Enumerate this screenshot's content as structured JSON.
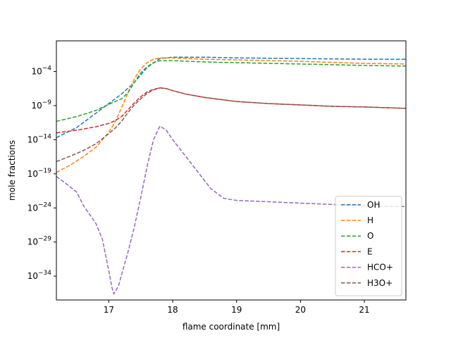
{
  "chart_data": {
    "type": "line",
    "title": "",
    "xlabel": "flame coordinate [mm]",
    "ylabel": "mole fractions",
    "xscale": "linear",
    "yscale": "log",
    "xlim": [
      16.18,
      21.65
    ],
    "ylim_exponent": [
      -37.5,
      0.5
    ],
    "x_ticks": [
      17,
      18,
      19,
      20,
      21
    ],
    "y_ticks_exponent": [
      -34,
      -29,
      -24,
      -19,
      -14,
      -9,
      -4
    ],
    "grid": false,
    "legend_position": "lower right",
    "series": [
      {
        "name": "OH",
        "color": "#1f77b4",
        "style": "dashed",
        "points": [
          [
            16.18,
            -13.7
          ],
          [
            16.5,
            -12.2
          ],
          [
            16.8,
            -10.1
          ],
          [
            17.0,
            -8.7
          ],
          [
            17.2,
            -7.3
          ],
          [
            17.4,
            -5.6
          ],
          [
            17.6,
            -3.4
          ],
          [
            17.8,
            -2.1
          ],
          [
            18.0,
            -1.9
          ],
          [
            18.5,
            -1.9
          ],
          [
            19.0,
            -2.0
          ],
          [
            20.0,
            -2.1
          ],
          [
            21.0,
            -2.2
          ],
          [
            21.65,
            -2.2
          ]
        ]
      },
      {
        "name": "H",
        "color": "#ff7f0e",
        "style": "dashed",
        "points": [
          [
            16.18,
            -18.8
          ],
          [
            16.4,
            -17.7
          ],
          [
            16.6,
            -16.5
          ],
          [
            16.8,
            -15.1
          ],
          [
            17.0,
            -12.9
          ],
          [
            17.1,
            -11.4
          ],
          [
            17.2,
            -9.3
          ],
          [
            17.3,
            -7.1
          ],
          [
            17.4,
            -5.1
          ],
          [
            17.5,
            -3.6
          ],
          [
            17.6,
            -2.7
          ],
          [
            17.7,
            -2.2
          ],
          [
            17.8,
            -2.0
          ],
          [
            18.0,
            -2.0
          ],
          [
            18.5,
            -2.2
          ],
          [
            19.0,
            -2.3
          ],
          [
            20.0,
            -2.5
          ],
          [
            21.0,
            -2.8
          ],
          [
            21.65,
            -2.9
          ]
        ]
      },
      {
        "name": "O",
        "color": "#2ca02c",
        "style": "dashed",
        "points": [
          [
            16.18,
            -11.3
          ],
          [
            16.5,
            -10.6
          ],
          [
            16.8,
            -9.7
          ],
          [
            17.0,
            -8.8
          ],
          [
            17.2,
            -8.0
          ],
          [
            17.3,
            -7.1
          ],
          [
            17.4,
            -5.6
          ],
          [
            17.5,
            -4.2
          ],
          [
            17.6,
            -3.3
          ],
          [
            17.7,
            -2.7
          ],
          [
            17.8,
            -2.4
          ],
          [
            18.0,
            -2.4
          ],
          [
            18.5,
            -2.6
          ],
          [
            19.0,
            -2.7
          ],
          [
            20.0,
            -2.9
          ],
          [
            21.0,
            -3.1
          ],
          [
            21.65,
            -3.2
          ]
        ]
      },
      {
        "name": "E",
        "color": "#d62728",
        "style": "dashed",
        "points": [
          [
            16.18,
            -13.0
          ],
          [
            16.5,
            -12.6
          ],
          [
            16.8,
            -12.1
          ],
          [
            17.0,
            -11.6
          ],
          [
            17.1,
            -11.2
          ],
          [
            17.2,
            -10.6
          ],
          [
            17.3,
            -9.6
          ],
          [
            17.4,
            -8.6
          ],
          [
            17.5,
            -7.7
          ],
          [
            17.6,
            -7.0
          ],
          [
            17.7,
            -6.6
          ],
          [
            17.8,
            -6.4
          ],
          [
            17.9,
            -6.5
          ],
          [
            18.0,
            -6.8
          ],
          [
            18.2,
            -7.3
          ],
          [
            18.5,
            -7.8
          ],
          [
            19.0,
            -8.4
          ],
          [
            19.5,
            -8.7
          ],
          [
            20.0,
            -8.9
          ],
          [
            20.5,
            -9.1
          ],
          [
            21.0,
            -9.2
          ],
          [
            21.65,
            -9.4
          ]
        ]
      },
      {
        "name": "HCO+",
        "color": "#9467bd",
        "style": "dashed",
        "points": [
          [
            16.18,
            -19.4
          ],
          [
            16.3,
            -20.2
          ],
          [
            16.5,
            -21.7
          ],
          [
            16.6,
            -23.6
          ],
          [
            16.8,
            -26.3
          ],
          [
            16.9,
            -28.6
          ],
          [
            17.0,
            -33.2
          ],
          [
            17.05,
            -35.7
          ],
          [
            17.08,
            -36.6
          ],
          [
            17.15,
            -35.5
          ],
          [
            17.2,
            -33.8
          ],
          [
            17.3,
            -30.5
          ],
          [
            17.4,
            -26.8
          ],
          [
            17.5,
            -22.5
          ],
          [
            17.6,
            -17.9
          ],
          [
            17.7,
            -14.0
          ],
          [
            17.8,
            -12.0
          ],
          [
            17.9,
            -12.6
          ],
          [
            18.0,
            -14.0
          ],
          [
            18.2,
            -16.4
          ],
          [
            18.4,
            -18.8
          ],
          [
            18.6,
            -21.2
          ],
          [
            18.8,
            -22.6
          ],
          [
            19.0,
            -22.9
          ],
          [
            19.5,
            -23.1
          ],
          [
            20.0,
            -23.3
          ],
          [
            20.5,
            -23.5
          ],
          [
            21.0,
            -23.7
          ],
          [
            21.65,
            -23.8
          ]
        ]
      },
      {
        "name": "H3O+",
        "color": "#8c564b",
        "style": "dashed",
        "points": [
          [
            16.18,
            -17.2
          ],
          [
            16.4,
            -16.4
          ],
          [
            16.6,
            -15.6
          ],
          [
            16.8,
            -14.6
          ],
          [
            17.0,
            -13.1
          ],
          [
            17.1,
            -12.3
          ],
          [
            17.2,
            -11.3
          ],
          [
            17.3,
            -10.0
          ],
          [
            17.4,
            -8.9
          ],
          [
            17.5,
            -8.0
          ],
          [
            17.6,
            -7.2
          ],
          [
            17.7,
            -6.7
          ],
          [
            17.8,
            -6.4
          ],
          [
            17.9,
            -6.5
          ],
          [
            18.0,
            -6.8
          ],
          [
            18.2,
            -7.3
          ],
          [
            18.5,
            -7.8
          ],
          [
            19.0,
            -8.4
          ],
          [
            19.5,
            -8.7
          ],
          [
            20.0,
            -8.9
          ],
          [
            20.5,
            -9.1
          ],
          [
            21.0,
            -9.2
          ],
          [
            21.65,
            -9.4
          ]
        ]
      }
    ]
  }
}
